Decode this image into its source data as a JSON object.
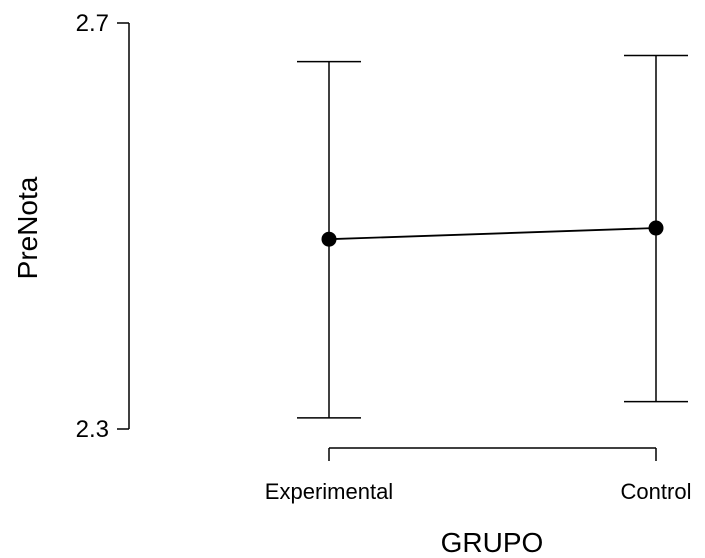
{
  "chart_data": {
    "type": "line",
    "title": "",
    "xlabel": "GRUPO",
    "ylabel": "PreNota",
    "categories": [
      "Experimental",
      "Control"
    ],
    "series": [
      {
        "values": [
          2.487,
          2.498
        ],
        "ci_lower": [
          2.311,
          2.327
        ],
        "ci_upper": [
          2.662,
          2.668
        ]
      }
    ],
    "yticks": [
      2.3,
      2.7
    ],
    "ytick_labels": [
      "2.3",
      "2.7"
    ],
    "ylim": [
      2.3,
      2.7
    ],
    "grid": false,
    "legend": "none"
  }
}
